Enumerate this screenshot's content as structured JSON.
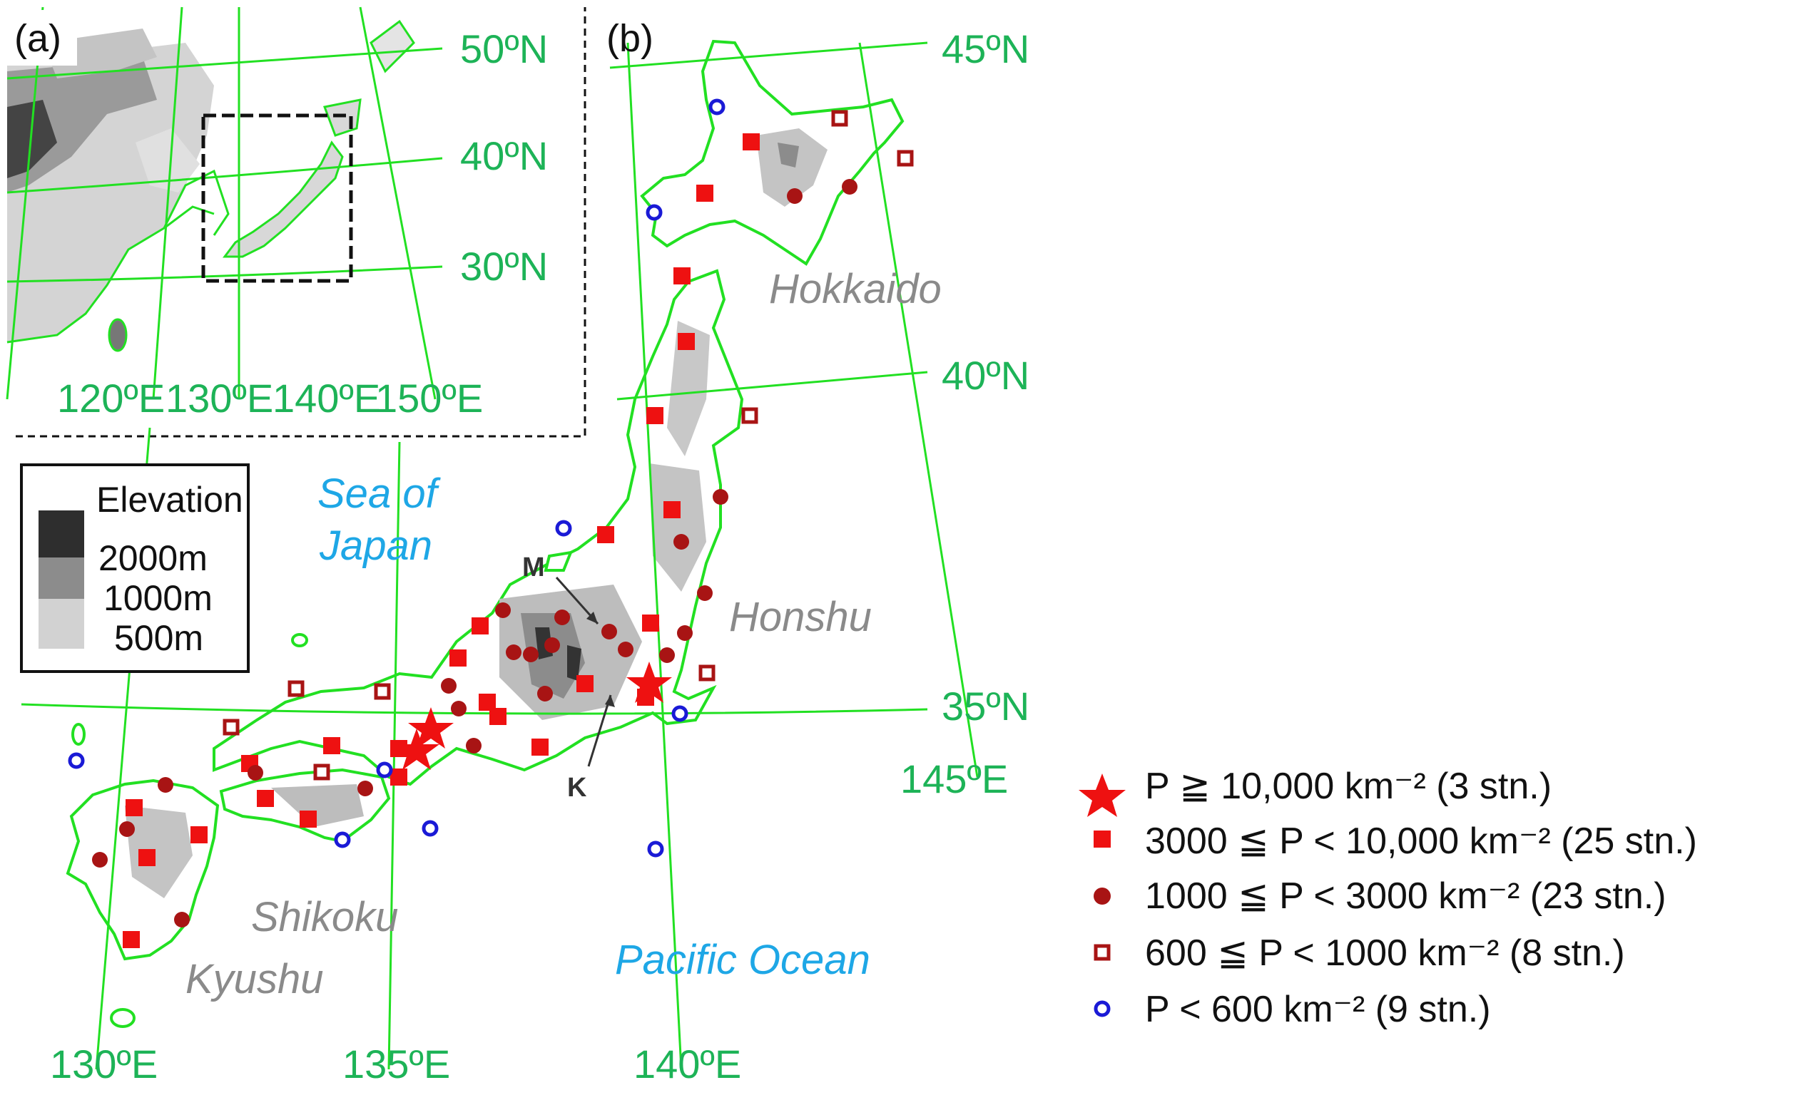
{
  "panels": {
    "a": "(a)",
    "b": "(b)"
  },
  "inset": {
    "lat_labels": [
      "50ºN",
      "40ºN",
      "30ºN"
    ],
    "lon_labels": [
      "120ºE",
      "130ºE",
      "140ºE",
      "150ºE"
    ]
  },
  "main_map": {
    "lat_labels": [
      "45ºN",
      "40ºN",
      "35ºN"
    ],
    "lon_labels": [
      "130ºE",
      "135ºE",
      "140ºE",
      "145ºE"
    ],
    "regions": [
      "Hokkaido",
      "Honshu",
      "Shikoku",
      "Kyushu"
    ],
    "seas": {
      "sea_of_japan_line1": "Sea of",
      "sea_of_japan_line2": "Japan",
      "pacific": "Pacific Ocean"
    },
    "markers": {
      "m": "M",
      "k": "K"
    }
  },
  "elevation_legend": {
    "title": "Elevation",
    "levels": [
      "2000m",
      "1000m",
      "500m"
    ],
    "colors": [
      "#2e2e2e",
      "#8c8c8c",
      "#d2d2d2"
    ]
  },
  "station_legend": [
    {
      "symbol": "star",
      "text": "P ≧ 10,000 km⁻² (3 stn.)",
      "color": "#ee1111"
    },
    {
      "symbol": "square-filled",
      "text": "3000 ≦ P < 10,000 km⁻² (25 stn.)",
      "color": "#ee1111"
    },
    {
      "symbol": "circle-filled",
      "text": "1000 ≦ P < 3000 km⁻² (23 stn.)",
      "color": "#a81414"
    },
    {
      "symbol": "square-open",
      "text": "600 ≦ P < 1000 km⁻² (8 stn.)",
      "color": "#a81414"
    },
    {
      "symbol": "circle-open",
      "text": "P < 600 km⁻² (9 stn.)",
      "color": "#1a1ad6"
    }
  ],
  "colors": {
    "grid": "#22e022",
    "label_green": "#1db357",
    "sea": "#1ea7e6",
    "region": "#8a8a8a"
  }
}
